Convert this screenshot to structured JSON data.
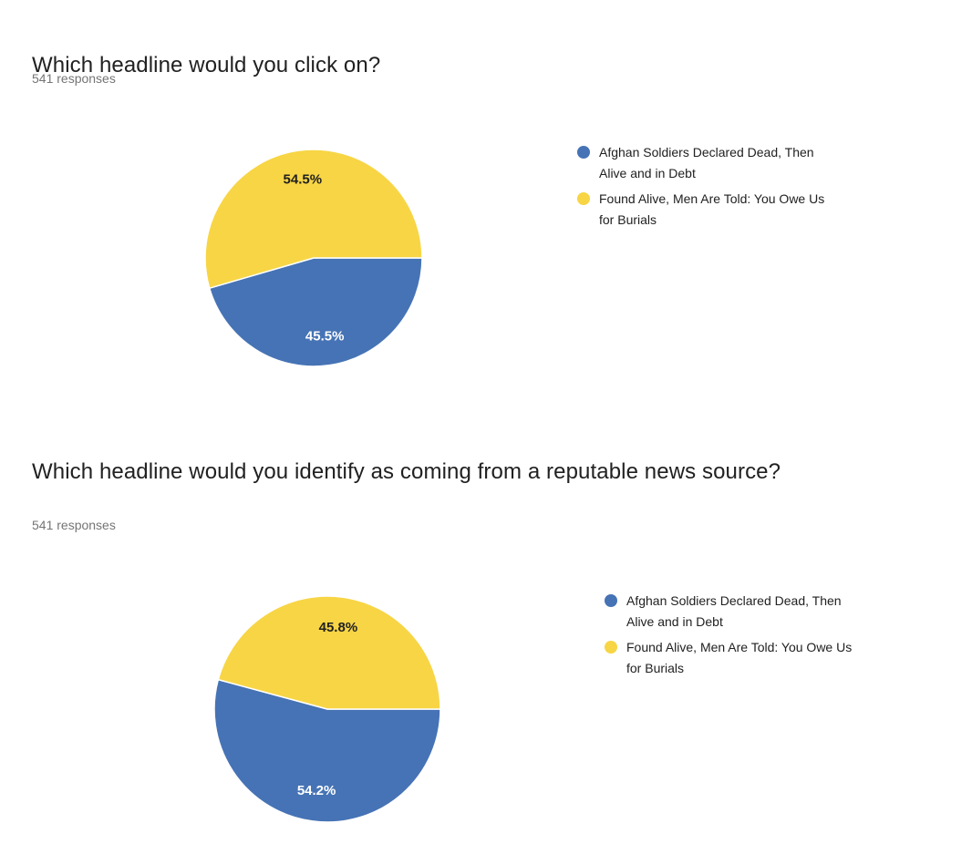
{
  "colors": {
    "background": "#ffffff",
    "blue": "#4673B5",
    "yellow": "#F7D545",
    "title_text": "#212121",
    "subtitle_text": "#757575",
    "legend_text": "#212121",
    "label_on_dark_slice": "#ffffff",
    "label_on_light_slice": "#212121"
  },
  "chart_data": [
    {
      "type": "pie",
      "title": "Which headline would you click on?",
      "responses_label": "541 responses",
      "categories": [
        "Afghan Soldiers Declared Dead, Then Alive and in Debt",
        "Found Alive, Men Are Told: You Owe Us for Burials"
      ],
      "values": [
        45.5,
        54.5
      ],
      "value_labels": [
        "45.5%",
        "54.5%"
      ],
      "colors": [
        "#4673B5",
        "#F7D545"
      ],
      "start_angle_deg": 0,
      "direction": "clockwise",
      "legend_position": "right",
      "grid": false
    },
    {
      "type": "pie",
      "title": "Which headline would you identify as coming from a reputable news source?",
      "responses_label": "541 responses",
      "categories": [
        "Afghan Soldiers Declared Dead, Then Alive and in Debt",
        "Found Alive, Men Are Told: You Owe Us for Burials"
      ],
      "values": [
        54.2,
        45.8
      ],
      "value_labels": [
        "54.2%",
        "45.8%"
      ],
      "colors": [
        "#4673B5",
        "#F7D545"
      ],
      "start_angle_deg": 0,
      "direction": "clockwise",
      "legend_position": "right",
      "grid": false
    }
  ]
}
